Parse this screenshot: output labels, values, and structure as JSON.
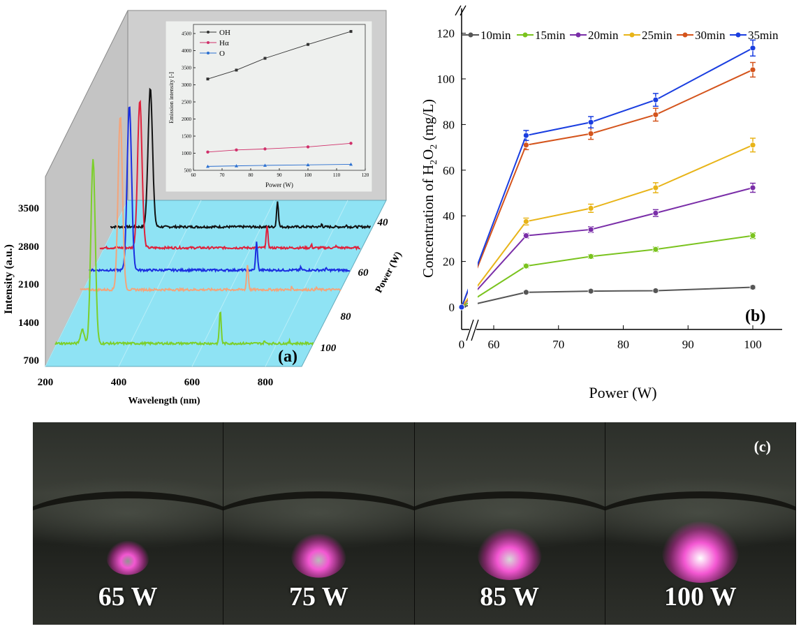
{
  "chart_data": [
    {
      "panel": "(a)",
      "type": "line",
      "projection": "3d-waterfall",
      "xlabel": "Wavelength (nm)",
      "ylabel": "Intensity (a.u.)",
      "zlabel": "Power (W)",
      "x_ticks": [
        "200",
        "400",
        "600",
        "800"
      ],
      "y_ticks": [
        "700",
        "1400",
        "2100",
        "2800",
        "3500"
      ],
      "z_ticks": [
        "40",
        "60",
        "80",
        "100"
      ],
      "xlim": [
        200,
        910
      ],
      "series": [
        {
          "color": "#111111",
          "peaks": [
            {
              "wavelength": 309,
              "intensity": 2545
            },
            {
              "wavelength": 656,
              "intensity": 470
            }
          ]
        },
        {
          "color": "#e0203a",
          "peaks": [
            {
              "wavelength": 309,
              "intensity": 2700
            },
            {
              "wavelength": 656,
              "intensity": 380
            }
          ]
        },
        {
          "color": "#1a2ee0",
          "peaks": [
            {
              "wavelength": 309,
              "intensity": 3015
            },
            {
              "wavelength": 656,
              "intensity": 510
            }
          ]
        },
        {
          "color": "#f4a47a",
          "peaks": [
            {
              "wavelength": 309,
              "intensity": 3180
            },
            {
              "wavelength": 656,
              "intensity": 445
            }
          ]
        },
        {
          "color": "#7ccf2a",
          "peaks": [
            {
              "wavelength": 309,
              "intensity": 3360
            },
            {
              "wavelength": 656,
              "intensity": 600
            }
          ]
        }
      ],
      "floor_color": "#8fe3f4",
      "wall_color": "#c4c4c4"
    },
    {
      "panel": "(a) inset",
      "type": "line",
      "xlabel": "Power (W)",
      "ylabel": "Emission intensity [-]",
      "xlim": [
        60,
        120
      ],
      "ylim": [
        500,
        4500
      ],
      "x_ticks": [
        "60",
        "70",
        "80",
        "90",
        "100",
        "110",
        "120"
      ],
      "y_ticks": [
        "500",
        "1000",
        "1500",
        "2000",
        "2500",
        "3000",
        "3500",
        "4000",
        "4500"
      ],
      "legend": "top-left",
      "x": [
        65,
        75,
        85,
        100,
        115
      ],
      "series": [
        {
          "name": "OH",
          "color": "#333333",
          "marker": "square",
          "values": [
            3170,
            3430,
            3775,
            4180,
            4560
          ]
        },
        {
          "name": "Hα",
          "color": "#d0306a",
          "marker": "circle",
          "values": [
            1035,
            1095,
            1125,
            1185,
            1290
          ]
        },
        {
          "name": "O",
          "color": "#2a6fd0",
          "marker": "triangle",
          "values": [
            615,
            630,
            645,
            660,
            675
          ]
        }
      ]
    },
    {
      "panel": "(b)",
      "type": "line",
      "xlabel": "Power (W)",
      "ylabel_pre": "Concentration of H",
      "ylabel_sub1": "2",
      "ylabel_mid": "O",
      "ylabel_sub2": "2",
      "ylabel_post": " (mg/L)",
      "x_ticks": [
        "0",
        "60",
        "70",
        "80",
        "90",
        "100"
      ],
      "y_ticks": [
        "0",
        "20",
        "40",
        "60",
        "80",
        "100",
        "120"
      ],
      "ylim": [
        -10,
        125
      ],
      "axis_break": "x between 0 and 60",
      "legend": "top",
      "x": [
        0,
        65,
        75,
        85,
        100
      ],
      "series": [
        {
          "name": "10min",
          "color": "#555555",
          "values": [
            0,
            6.5,
            7.0,
            7.2,
            8.7
          ],
          "errors": [
            0,
            0.5,
            0.5,
            0.5,
            0.6
          ]
        },
        {
          "name": "15min",
          "color": "#7ac31e",
          "values": [
            0,
            18.0,
            22.2,
            25.3,
            31.3
          ],
          "errors": [
            0,
            0.8,
            0.8,
            1.0,
            1.2
          ]
        },
        {
          "name": "20min",
          "color": "#7a2ea8",
          "values": [
            0,
            31.3,
            34.0,
            41.2,
            52.3
          ],
          "errors": [
            0,
            1.0,
            1.2,
            1.5,
            2.0
          ]
        },
        {
          "name": "25min",
          "color": "#e8b418",
          "values": [
            0,
            37.5,
            43.3,
            52.3,
            71.0
          ],
          "errors": [
            0,
            1.5,
            1.8,
            2.2,
            3.0
          ]
        },
        {
          "name": "30min",
          "color": "#d4541c",
          "values": [
            0,
            71.0,
            76.0,
            84.3,
            104.0
          ],
          "errors": [
            0,
            2.0,
            2.5,
            2.8,
            3.2
          ]
        },
        {
          "name": "35min",
          "color": "#1a3ee0",
          "values": [
            0,
            75.2,
            81.0,
            90.8,
            113.5
          ],
          "errors": [
            0,
            2.2,
            2.5,
            2.8,
            3.5
          ]
        }
      ]
    }
  ],
  "panel_c": {
    "label": "(c)",
    "photos": [
      {
        "label": "65 W",
        "glow": 0.3
      },
      {
        "label": "75 W",
        "glow": 0.55
      },
      {
        "label": "85 W",
        "glow": 0.75
      },
      {
        "label": "100 W",
        "glow": 1.0
      }
    ]
  }
}
